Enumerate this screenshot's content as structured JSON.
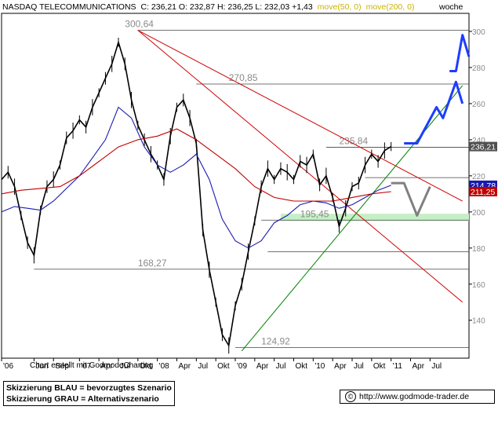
{
  "header": {
    "instrument": "NASDAQ TELECOMMUNICATIONS",
    "ohlc": "C: 236,21 O: 232,87 H: 236,25 L: 232,03 +1,43",
    "ma50": "move(50, 0)",
    "ma200": "move(200, 0)",
    "period": "woche"
  },
  "credit": "Chart erstellt mit GodmodeCharting",
  "legend": {
    "line1": "Skizzierung BLAU = bevorzugtes Szenario",
    "line2": "Skizzierung GRAU = Alternativszenario"
  },
  "url": {
    "copyright_symbol": "©",
    "text": "http://www.godmode-trader.de"
  },
  "colors": {
    "price": "#000000",
    "ma50": "#1a1ab0",
    "ma200": "#c00000",
    "trend_red": "#d00000",
    "trend_green": "#008000",
    "scenario_blue": "#1e3cff",
    "scenario_grey": "#808080",
    "support_zone": "#c6efc6",
    "last_badge": "#505050"
  },
  "chart_data": {
    "type": "line",
    "title": "NASDAQ TELECOMMUNICATIONS",
    "x_ticks": [
      "'06",
      "Jun",
      "Sep",
      "'07",
      "Apr",
      "Jul",
      "Okt",
      "'08",
      "Apr",
      "Jul",
      "Okt",
      "'09",
      "Apr",
      "Jul",
      "Okt",
      "'10",
      "Apr",
      "Jul",
      "Okt",
      "'11",
      "Apr",
      "Jul"
    ],
    "x_tick_t": [
      0,
      5,
      8,
      12,
      15,
      18,
      21,
      24,
      27,
      30,
      33,
      36,
      39,
      42,
      45,
      48,
      51,
      54,
      57,
      60,
      63,
      66
    ],
    "y_ticks": [
      140,
      160,
      180,
      200,
      220,
      240,
      260,
      280,
      300
    ],
    "ylim": [
      119,
      310
    ],
    "xlim": [
      0,
      72
    ],
    "series": [
      {
        "name": "NASDAQ TELECOMMUNICATIONS",
        "role": "price",
        "t": [
          0,
          1,
          2,
          3,
          4,
          5,
          6,
          7,
          8,
          9,
          10,
          11,
          12,
          13,
          14,
          15,
          16,
          17,
          18,
          19,
          20,
          21,
          22,
          23,
          24,
          25,
          26,
          27,
          28,
          29,
          30,
          31,
          32,
          33,
          34,
          35,
          36,
          37,
          38,
          39,
          40,
          41,
          42,
          43,
          44,
          45,
          46,
          47,
          48,
          49,
          50,
          51,
          52,
          53,
          54,
          55,
          56,
          57,
          58,
          59,
          60
        ],
        "values": [
          218,
          222,
          214,
          198,
          183,
          176,
          201,
          214,
          218,
          226,
          241,
          245,
          251,
          247,
          258,
          266,
          274,
          282,
          294,
          282,
          262,
          248,
          240,
          232,
          226,
          218,
          242,
          258,
          262,
          252,
          238,
          190,
          168,
          150,
          132,
          126,
          148,
          160,
          178,
          195,
          214,
          224,
          218,
          224,
          222,
          218,
          228,
          226,
          232,
          215,
          220,
          208,
          192,
          202,
          214,
          216,
          226,
          232,
          228,
          234,
          236.21
        ]
      },
      {
        "name": "move(50, 0)",
        "role": "ma50",
        "t": [
          0,
          2,
          4,
          6,
          8,
          10,
          12,
          14,
          16,
          18,
          20,
          22,
          24,
          26,
          28,
          30,
          32,
          34,
          36,
          38,
          40,
          42,
          44,
          46,
          48,
          50,
          52,
          54,
          56,
          58,
          60
        ],
        "values": [
          200,
          203,
          202,
          201,
          206,
          213,
          220,
          230,
          240,
          258,
          252,
          236,
          226,
          222,
          226,
          232,
          218,
          196,
          184,
          180,
          184,
          194,
          198,
          204,
          206,
          205,
          202,
          204,
          208,
          212,
          214.78
        ]
      },
      {
        "name": "move(200, 0)",
        "role": "ma200",
        "t": [
          0,
          3,
          6,
          9,
          12,
          15,
          18,
          21,
          24,
          27,
          30,
          33,
          36,
          39,
          42,
          45,
          48,
          51,
          54,
          57,
          60
        ],
        "values": [
          210,
          212,
          213,
          214,
          220,
          228,
          236,
          240,
          242,
          246,
          240,
          232,
          224,
          214,
          208,
          206,
          206,
          206,
          208,
          210,
          211.25
        ]
      }
    ],
    "horizontal_levels": [
      {
        "value": 300.64,
        "label": "300,64",
        "t_from": 21,
        "label_t": 19
      },
      {
        "value": 270.85,
        "label": "270,85",
        "t_from": 30,
        "label_t": 35
      },
      {
        "value": 235.84,
        "label": "235,84",
        "t_from": 50,
        "label_t": 52
      },
      {
        "value": 219,
        "label": "",
        "t_from": 56
      },
      {
        "value": 195.45,
        "label": "195,45",
        "t_from": 40,
        "label_t": 46
      },
      {
        "value": 178,
        "label": "",
        "t_from": 41
      },
      {
        "value": 168.27,
        "label": "168,27",
        "t_from": 5,
        "label_t": 21
      },
      {
        "value": 124.92,
        "label": "124,92",
        "t_from": 36,
        "label_t": 40
      }
    ],
    "support_zone": {
      "t_from": 43,
      "t_to": 72,
      "y_from": 195,
      "y_to": 199
    },
    "trendlines": [
      {
        "color": "red",
        "from": {
          "t": 21,
          "v": 300.64
        },
        "to": {
          "t": 71,
          "v": 206
        }
      },
      {
        "color": "red",
        "from": {
          "t": 21,
          "v": 300.64
        },
        "to": {
          "t": 71,
          "v": 150
        }
      },
      {
        "color": "green",
        "from": {
          "t": 37,
          "v": 123
        },
        "to": {
          "t": 71,
          "v": 270
        }
      }
    ],
    "scenarios": [
      {
        "name": "blau",
        "color": "blue",
        "points": [
          {
            "t": 62,
            "v": 238
          },
          {
            "t": 64,
            "v": 238
          },
          {
            "t": 67,
            "v": 258
          },
          {
            "t": 68,
            "v": 252
          },
          {
            "t": 70,
            "v": 272
          },
          {
            "t": 71,
            "v": 260
          }
        ]
      },
      {
        "name": "blau2",
        "color": "blue",
        "points": [
          {
            "t": 69,
            "v": 278
          },
          {
            "t": 70,
            "v": 278
          },
          {
            "t": 71,
            "v": 298
          },
          {
            "t": 72,
            "v": 286
          }
        ]
      },
      {
        "name": "grau",
        "color": "grey",
        "points": [
          {
            "t": 60,
            "v": 216
          },
          {
            "t": 62,
            "v": 216
          },
          {
            "t": 64,
            "v": 198
          },
          {
            "t": 66,
            "v": 214
          }
        ]
      }
    ],
    "last_values": [
      {
        "value": 236.21,
        "label": "236,21",
        "role": "price"
      },
      {
        "value": 214.78,
        "label": "214,78",
        "role": "ma50"
      },
      {
        "value": 211.25,
        "label": "211,25",
        "role": "ma200"
      }
    ]
  }
}
